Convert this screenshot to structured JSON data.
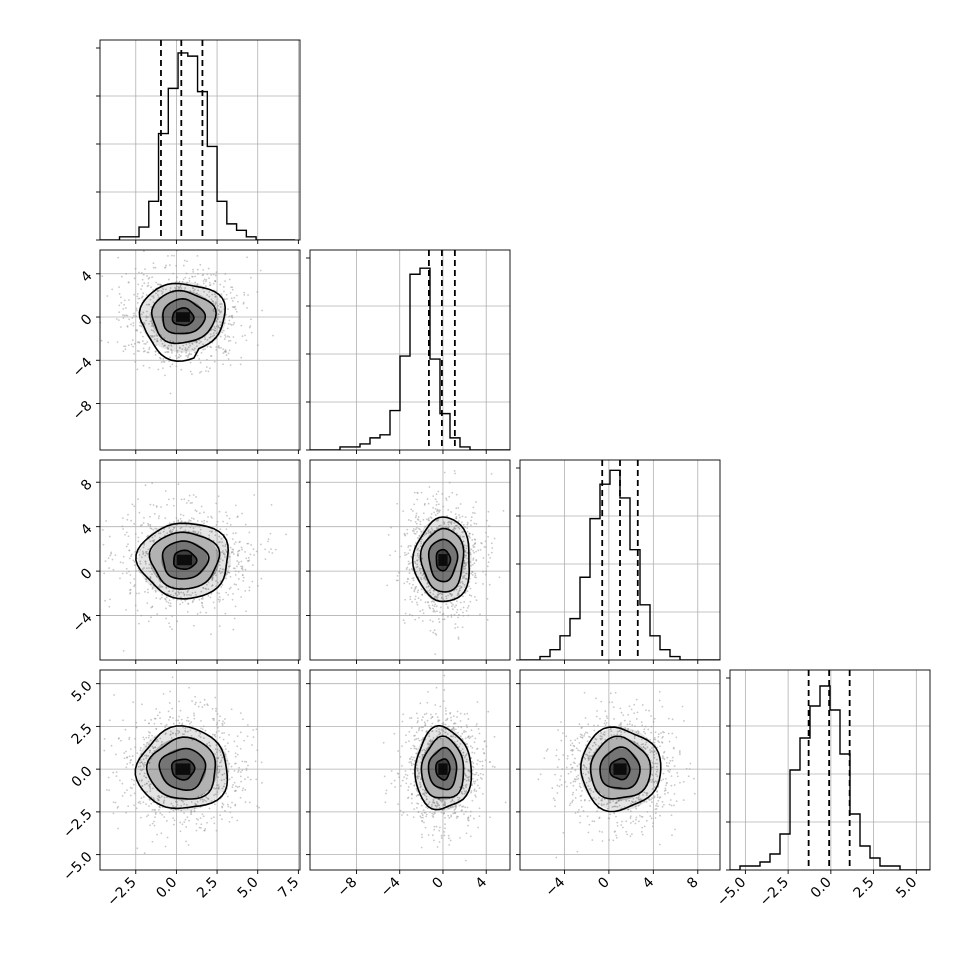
{
  "chart_data": {
    "type": "corner",
    "title": "",
    "variables": [
      {
        "label": "",
        "range": [
          -4.7,
          7.6
        ],
        "ticks": [
          -2.5,
          0.0,
          2.5,
          5.0,
          7.5
        ],
        "tick_labels": [
          "−2.5",
          "0.0",
          "2.5",
          "5.0",
          "7.5"
        ],
        "quantiles": [
          -0.95,
          0.3,
          1.6
        ],
        "hist": {
          "edges_start": -4.7,
          "bin_width": 0.6,
          "counts": [
            0,
            0,
            1,
            1,
            4,
            12,
            33,
            47,
            58,
            57,
            46,
            29,
            12,
            5,
            3,
            1,
            0,
            0,
            0,
            0
          ]
        },
        "hist_ymax": 62
      },
      {
        "label": "",
        "range": [
          -12.3,
          6.2
        ],
        "ticks": [
          -8,
          -4,
          0,
          4
        ],
        "tick_labels": [
          "−8",
          "−4",
          "0",
          "4"
        ],
        "quantiles": [
          -1.3,
          -0.1,
          1.1
        ],
        "hist": {
          "edges_start": -12.3,
          "bin_width": 0.925,
          "counts": [
            0,
            0,
            0,
            1,
            1,
            2,
            4,
            5,
            13,
            31,
            58,
            60,
            30,
            12,
            4,
            1,
            0,
            0,
            0,
            0
          ]
        },
        "hist_ymax": 66
      },
      {
        "label": "",
        "range": [
          -8.0,
          10.0
        ],
        "ticks": [
          -4,
          0,
          4,
          8
        ],
        "tick_labels": [
          "−4",
          "0",
          "4",
          "8"
        ],
        "quantiles": [
          -0.6,
          1.0,
          2.6
        ],
        "hist": {
          "edges_start": -8.0,
          "bin_width": 0.9,
          "counts": [
            0,
            0,
            1,
            3,
            7,
            12,
            24,
            41,
            51,
            55,
            47,
            32,
            16,
            7,
            3,
            1,
            0,
            0,
            0,
            0
          ]
        },
        "hist_ymax": 58
      },
      {
        "label": "",
        "range": [
          -5.9,
          5.8
        ],
        "ticks": [
          -5.0,
          -2.5,
          0.0,
          2.5,
          5.0
        ],
        "tick_labels": [
          "−5.0",
          "−2.5",
          "0.0",
          "2.5",
          "5.0"
        ],
        "quantiles": [
          -1.3,
          -0.1,
          1.1
        ],
        "hist": {
          "edges_start": -5.9,
          "bin_width": 0.585,
          "counts": [
            0,
            1,
            1,
            2,
            4,
            9,
            25,
            33,
            41,
            46,
            40,
            29,
            14,
            6,
            3,
            1,
            1,
            0,
            0,
            0
          ]
        },
        "hist_ymax": 50
      }
    ],
    "pairs": [
      {
        "x": 0,
        "y": 1,
        "center": [
          0.4,
          0.0
        ],
        "sigma": [
          1.3,
          1.6
        ],
        "tail": [
          0,
          -1
        ]
      },
      {
        "x": 0,
        "y": 2,
        "center": [
          0.5,
          1.0
        ],
        "sigma": [
          1.4,
          1.7
        ],
        "tail": [
          0,
          0
        ]
      },
      {
        "x": 1,
        "y": 2,
        "center": [
          0.0,
          1.0
        ],
        "sigma": [
          1.3,
          1.9
        ],
        "tail": [
          0,
          0
        ]
      },
      {
        "x": 0,
        "y": 3,
        "center": [
          0.4,
          0.0
        ],
        "sigma": [
          1.4,
          1.2
        ],
        "tail": [
          0,
          0
        ]
      },
      {
        "x": 1,
        "y": 3,
        "center": [
          0.0,
          0.0
        ],
        "sigma": [
          1.3,
          1.2
        ],
        "tail": [
          0,
          0
        ]
      },
      {
        "x": 2,
        "y": 3,
        "center": [
          1.0,
          0.0
        ],
        "sigma": [
          1.8,
          1.2
        ],
        "tail": [
          0,
          0
        ]
      }
    ],
    "contour_levels_sigma": [
      0.5,
      1.0,
      1.5,
      2.0
    ],
    "grid": true,
    "colors": {
      "line": "#000000",
      "grid": "#b0b0b0",
      "points": "#9a9a9a",
      "density": "#000000"
    }
  }
}
